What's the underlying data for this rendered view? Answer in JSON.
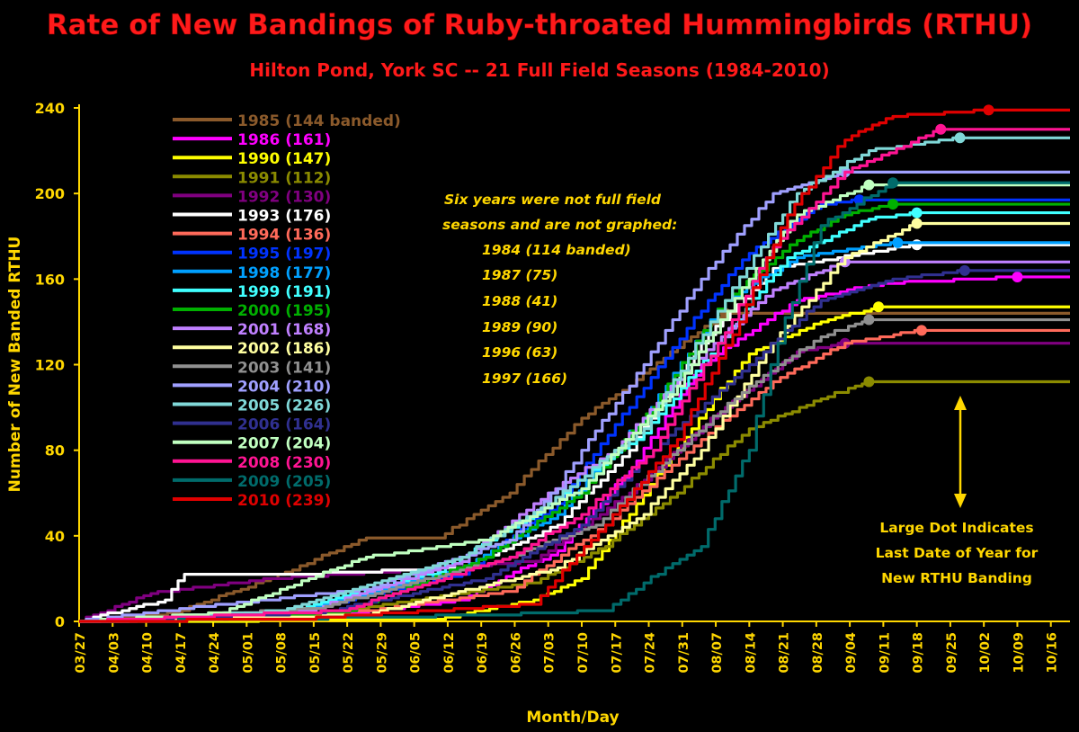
{
  "chart_data": {
    "type": "line",
    "title": "Rate of New Bandings of Ruby-throated Hummingbirds (RTHU)",
    "subtitle": "Hilton Pond, York SC -- 21 Full Field Seasons (1984-2010)",
    "xlabel": "Month/Day",
    "ylabel": "Number of New Banded RTHU",
    "ylim": [
      0,
      240
    ],
    "yticks": [
      0,
      40,
      80,
      120,
      160,
      200,
      240
    ],
    "xticks": [
      "03/27",
      "04/03",
      "04/10",
      "04/17",
      "04/24",
      "05/01",
      "05/08",
      "05/15",
      "05/22",
      "05/29",
      "06/05",
      "06/12",
      "06/19",
      "06/26",
      "07/03",
      "07/10",
      "07/17",
      "07/24",
      "07/31",
      "08/07",
      "08/14",
      "08/21",
      "08/28",
      "09/04",
      "09/11",
      "09/18",
      "09/25",
      "10/02",
      "10/09",
      "10/16"
    ],
    "grid": false,
    "legend_position": "top-left",
    "series": [
      {
        "name": "1985",
        "label": "(144 banded)",
        "color": "#8B5A2B",
        "values": [
          [
            0,
            0
          ],
          [
            20,
            4
          ],
          [
            40,
            20
          ],
          [
            60,
            39
          ],
          [
            75,
            39
          ],
          [
            90,
            60
          ],
          [
            105,
            95
          ],
          [
            115,
            110
          ],
          [
            125,
            128
          ],
          [
            135,
            144
          ]
        ]
      },
      {
        "name": "1986",
        "label": "(161)",
        "color": "#FF00FF",
        "values": [
          [
            0,
            0
          ],
          [
            50,
            2
          ],
          [
            80,
            10
          ],
          [
            100,
            33
          ],
          [
            115,
            70
          ],
          [
            130,
            120
          ],
          [
            150,
            150
          ],
          [
            168,
            158
          ],
          [
            196,
            161
          ]
        ]
      },
      {
        "name": "1990",
        "label": "(147)",
        "color": "#FFFF00",
        "values": [
          [
            0,
            0
          ],
          [
            75,
            1
          ],
          [
            95,
            10
          ],
          [
            105,
            20
          ],
          [
            115,
            50
          ],
          [
            128,
            90
          ],
          [
            140,
            125
          ],
          [
            155,
            140
          ],
          [
            167,
            147
          ]
        ]
      },
      {
        "name": "1991",
        "label": "(112)",
        "color": "#8B8B00",
        "values": [
          [
            0,
            0
          ],
          [
            50,
            3
          ],
          [
            95,
            18
          ],
          [
            110,
            35
          ],
          [
            125,
            60
          ],
          [
            140,
            90
          ],
          [
            155,
            104
          ],
          [
            165,
            112
          ]
        ]
      },
      {
        "name": "1992",
        "label": "(130)",
        "color": "#800080",
        "values": [
          [
            0,
            0
          ],
          [
            15,
            13
          ],
          [
            40,
            20
          ],
          [
            70,
            24
          ],
          [
            95,
            28
          ],
          [
            115,
            60
          ],
          [
            135,
            100
          ],
          [
            150,
            126
          ],
          [
            160,
            130
          ]
        ]
      },
      {
        "name": "1993",
        "label": "(176)",
        "color": "#FFFFFF",
        "values": [
          [
            0,
            0
          ],
          [
            18,
            10
          ],
          [
            22,
            22
          ],
          [
            45,
            22
          ],
          [
            80,
            25
          ],
          [
            100,
            45
          ],
          [
            115,
            80
          ],
          [
            130,
            130
          ],
          [
            145,
            165
          ],
          [
            175,
            176
          ]
        ]
      },
      {
        "name": "1994",
        "label": "(136)",
        "color": "#FF6A5A",
        "values": [
          [
            0,
            0
          ],
          [
            60,
            5
          ],
          [
            90,
            14
          ],
          [
            110,
            45
          ],
          [
            130,
            85
          ],
          [
            145,
            112
          ],
          [
            160,
            130
          ],
          [
            176,
            136
          ]
        ]
      },
      {
        "name": "1995",
        "label": "(197)",
        "color": "#0033FF",
        "values": [
          [
            0,
            0
          ],
          [
            40,
            2
          ],
          [
            80,
            22
          ],
          [
            100,
            55
          ],
          [
            115,
            100
          ],
          [
            130,
            145
          ],
          [
            140,
            172
          ],
          [
            155,
            195
          ],
          [
            163,
            197
          ]
        ]
      },
      {
        "name": "1998",
        "label": "(177)",
        "color": "#00A0FF",
        "values": [
          [
            0,
            0
          ],
          [
            45,
            4
          ],
          [
            80,
            25
          ],
          [
            100,
            50
          ],
          [
            118,
            95
          ],
          [
            135,
            150
          ],
          [
            150,
            170
          ],
          [
            171,
            177
          ]
        ]
      },
      {
        "name": "1999",
        "label": "(191)",
        "color": "#40FFFF",
        "values": [
          [
            0,
            0
          ],
          [
            40,
            3
          ],
          [
            75,
            23
          ],
          [
            95,
            50
          ],
          [
            118,
            88
          ],
          [
            132,
            125
          ],
          [
            148,
            170
          ],
          [
            165,
            188
          ],
          [
            175,
            191
          ]
        ]
      },
      {
        "name": "2000",
        "label": "(195)",
        "color": "#00B000",
        "values": [
          [
            0,
            0
          ],
          [
            55,
            4
          ],
          [
            85,
            30
          ],
          [
            105,
            60
          ],
          [
            120,
            100
          ],
          [
            135,
            150
          ],
          [
            150,
            178
          ],
          [
            160,
            190
          ],
          [
            170,
            195
          ]
        ]
      },
      {
        "name": "2001",
        "label": "(168)",
        "color": "#C080FF",
        "values": [
          [
            0,
            0
          ],
          [
            48,
            5
          ],
          [
            80,
            28
          ],
          [
            98,
            60
          ],
          [
            112,
            80
          ],
          [
            128,
            120
          ],
          [
            145,
            155
          ],
          [
            160,
            168
          ]
        ]
      },
      {
        "name": "2002",
        "label": "(186)",
        "color": "#FFFFA0",
        "values": [
          [
            0,
            0
          ],
          [
            60,
            3
          ],
          [
            100,
            25
          ],
          [
            118,
            50
          ],
          [
            130,
            80
          ],
          [
            145,
            130
          ],
          [
            160,
            170
          ],
          [
            175,
            186
          ]
        ]
      },
      {
        "name": "2003",
        "label": "(141)",
        "color": "#909090",
        "values": [
          [
            0,
            0
          ],
          [
            50,
            6
          ],
          [
            90,
            30
          ],
          [
            108,
            45
          ],
          [
            125,
            80
          ],
          [
            140,
            110
          ],
          [
            155,
            133
          ],
          [
            165,
            141
          ]
        ]
      },
      {
        "name": "2004",
        "label": "(210)",
        "color": "#A0A0FF",
        "values": [
          [
            0,
            0
          ],
          [
            30,
            8
          ],
          [
            60,
            15
          ],
          [
            90,
            38
          ],
          [
            100,
            62
          ],
          [
            105,
            80
          ],
          [
            115,
            110
          ],
          [
            130,
            160
          ],
          [
            145,
            200
          ],
          [
            160,
            210
          ]
        ]
      },
      {
        "name": "2005",
        "label": "(226)",
        "color": "#80D8D8",
        "values": [
          [
            0,
            0
          ],
          [
            42,
            5
          ],
          [
            80,
            30
          ],
          [
            98,
            55
          ],
          [
            118,
            90
          ],
          [
            135,
            150
          ],
          [
            150,
            200
          ],
          [
            165,
            220
          ],
          [
            184,
            226
          ]
        ]
      },
      {
        "name": "2006",
        "label": "(164)",
        "color": "#303090",
        "values": [
          [
            0,
            0
          ],
          [
            50,
            4
          ],
          [
            85,
            20
          ],
          [
            105,
            45
          ],
          [
            120,
            80
          ],
          [
            140,
            120
          ],
          [
            155,
            150
          ],
          [
            170,
            160
          ],
          [
            185,
            164
          ]
        ]
      },
      {
        "name": "2007",
        "label": "(204)",
        "color": "#C0FFC0",
        "values": [
          [
            0,
            0
          ],
          [
            30,
            4
          ],
          [
            60,
            30
          ],
          [
            85,
            38
          ],
          [
            105,
            62
          ],
          [
            125,
            110
          ],
          [
            140,
            160
          ],
          [
            150,
            190
          ],
          [
            165,
            204
          ]
        ]
      },
      {
        "name": "2008",
        "label": "(230)",
        "color": "#FF1493",
        "values": [
          [
            0,
            0
          ],
          [
            55,
            5
          ],
          [
            90,
            30
          ],
          [
            105,
            50
          ],
          [
            120,
            80
          ],
          [
            135,
            135
          ],
          [
            145,
            175
          ],
          [
            160,
            210
          ],
          [
            180,
            230
          ]
        ]
      },
      {
        "name": "2009",
        "label": "(205)",
        "color": "#006B6B",
        "values": [
          [
            0,
            0
          ],
          [
            40,
            1
          ],
          [
            85,
            3
          ],
          [
            110,
            5
          ],
          [
            118,
            18
          ],
          [
            130,
            35
          ],
          [
            140,
            80
          ],
          [
            146,
            130
          ],
          [
            155,
            185
          ],
          [
            170,
            205
          ]
        ]
      },
      {
        "name": "2010",
        "label": "(239)",
        "color": "#E00000",
        "values": [
          [
            0,
            0
          ],
          [
            45,
            1
          ],
          [
            95,
            8
          ],
          [
            110,
            45
          ],
          [
            125,
            85
          ],
          [
            138,
            140
          ],
          [
            148,
            190
          ],
          [
            160,
            225
          ],
          [
            170,
            236
          ],
          [
            190,
            239
          ]
        ]
      }
    ],
    "annotations": {
      "not_graphed_title_1": "Six years were not full field",
      "not_graphed_title_2": "seasons and are not graphed:",
      "not_graphed": [
        "1984 (114 banded)",
        "1987 (75)",
        "1988 (41)",
        "1989 (90)",
        "1996 (63)",
        "1997 (166)"
      ],
      "dot_note_1": "Large Dot Indicates",
      "dot_note_2": "Last Date of Year for",
      "dot_note_3": "New RTHU Banding"
    },
    "colors": {
      "background": "#000000",
      "title": "#FF1A1A",
      "axis_text": "#FFD700",
      "axis_line": "#FFD700"
    }
  }
}
